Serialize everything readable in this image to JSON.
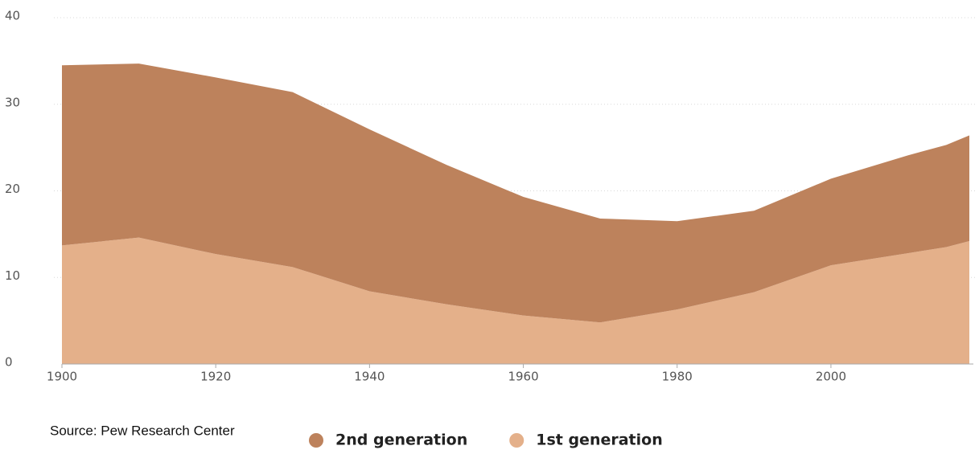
{
  "chart_data": {
    "type": "stacked_area",
    "x": [
      1900,
      1910,
      1920,
      1930,
      1940,
      1950,
      1960,
      1970,
      1980,
      1990,
      2000,
      2010,
      2015,
      2018
    ],
    "series": [
      {
        "name": "1st generation",
        "color": "#e4b08a",
        "values": [
          13.7,
          14.6,
          12.7,
          11.2,
          8.4,
          6.9,
          5.6,
          4.8,
          6.3,
          8.3,
          11.4,
          12.8,
          13.5,
          14.2
        ]
      },
      {
        "name": "2nd generation",
        "color": "#bd825c",
        "values": [
          20.8,
          20.1,
          20.4,
          20.2,
          18.7,
          16.1,
          13.7,
          12.0,
          10.2,
          9.4,
          10.0,
          11.3,
          11.8,
          12.2
        ]
      }
    ],
    "xlim": [
      1900,
      2018
    ],
    "xticks": [
      1900,
      1920,
      1940,
      1960,
      1980,
      2000
    ],
    "ylim": [
      0,
      40
    ],
    "yticks": [
      0,
      10,
      20,
      30,
      40
    ],
    "grid": true,
    "source": "Source: Pew Research Center"
  }
}
